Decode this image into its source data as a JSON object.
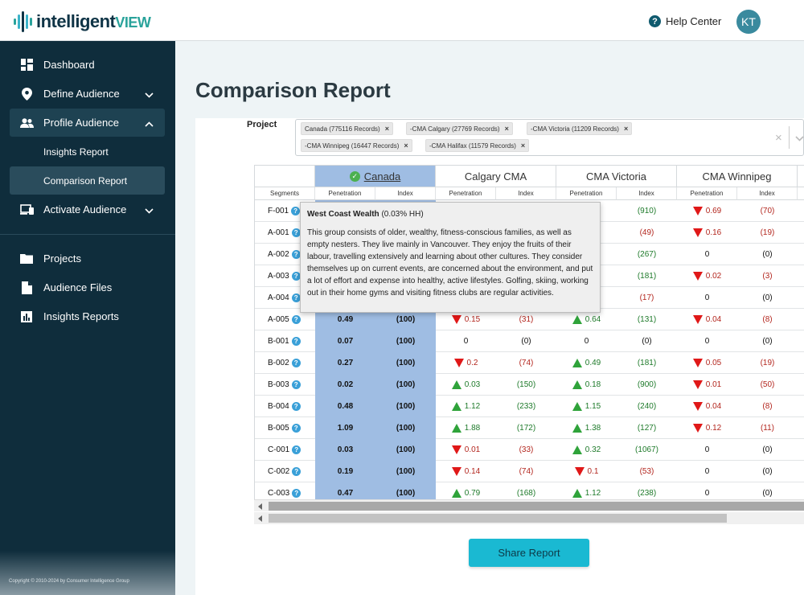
{
  "app": {
    "logo_main": "intelligent",
    "logo_accent": "VIEW"
  },
  "topbar": {
    "help_label": "Help Center",
    "avatar_initials": "KT"
  },
  "sidebar": {
    "items": [
      {
        "label": "Dashboard"
      },
      {
        "label": "Define Audience"
      },
      {
        "label": "Profile Audience"
      },
      {
        "label": "Insights Report"
      },
      {
        "label": "Comparison Report"
      },
      {
        "label": "Activate Audience"
      },
      {
        "label": "Projects"
      },
      {
        "label": "Audience Files"
      },
      {
        "label": "Insights Reports"
      }
    ],
    "copyright": "Copyright © 2010-2024 by Consumer Intelligence Group"
  },
  "page": {
    "title": "Comparison Report",
    "project_label": "Project"
  },
  "project_chips": [
    "Canada (775116 Records)",
    "-CMA Calgary (27769 Records)",
    "-CMA Victoria (11209 Records)",
    "-CMA Winnipeg (16447 Records)",
    "-CMA Halifax (11579 Records)"
  ],
  "table": {
    "columns": [
      "Canada",
      "Calgary CMA",
      "CMA Victoria",
      "CMA Winnipeg"
    ],
    "subheaders": {
      "segments": "Segments",
      "penetration": "Penetration",
      "index": "Index"
    },
    "rows": [
      {
        "seg": "F-001",
        "c": [
          "",
          ""
        ],
        "cal": [
          "",
          ""
        ],
        "vic": [
          "",
          "(910)"
        ],
        "win": [
          "0.69",
          "(70)"
        ],
        "dir": [
          "",
          "",
          "down"
        ]
      },
      {
        "seg": "A-001",
        "c": [
          "",
          ""
        ],
        "cal": [
          "",
          ""
        ],
        "vic": [
          "",
          "(49)"
        ],
        "win": [
          "0.16",
          "(19)"
        ],
        "dir": [
          "",
          "",
          "down"
        ]
      },
      {
        "seg": "A-002",
        "c": [
          "",
          ""
        ],
        "cal": [
          "",
          ""
        ],
        "vic": [
          "",
          "(267)"
        ],
        "win": [
          "0",
          "(0)"
        ],
        "dir": [
          "",
          "",
          ""
        ]
      },
      {
        "seg": "A-003",
        "c": [
          "",
          ""
        ],
        "cal": [
          "",
          ""
        ],
        "vic": [
          "",
          "(181)"
        ],
        "win": [
          "0.02",
          "(3)"
        ],
        "dir": [
          "",
          "",
          "down"
        ]
      },
      {
        "seg": "A-004",
        "c": [
          "",
          ""
        ],
        "cal": [
          "",
          ""
        ],
        "vic": [
          "",
          "(17)"
        ],
        "win": [
          "0",
          "(0)"
        ],
        "dir": [
          "",
          "",
          ""
        ]
      },
      {
        "seg": "A-005",
        "c": [
          "0.49",
          "(100)"
        ],
        "cal": [
          "0.15",
          "(31)"
        ],
        "vic": [
          "0.64",
          "(131)"
        ],
        "win": [
          "0.04",
          "(8)"
        ],
        "dir": [
          "down",
          "up",
          "down"
        ]
      },
      {
        "seg": "B-001",
        "c": [
          "0.07",
          "(100)"
        ],
        "cal": [
          "0",
          "(0)"
        ],
        "vic": [
          "0",
          "(0)"
        ],
        "win": [
          "0",
          "(0)"
        ],
        "dir": [
          "",
          "",
          ""
        ]
      },
      {
        "seg": "B-002",
        "c": [
          "0.27",
          "(100)"
        ],
        "cal": [
          "0.2",
          "(74)"
        ],
        "vic": [
          "0.49",
          "(181)"
        ],
        "win": [
          "0.05",
          "(19)"
        ],
        "dir": [
          "down",
          "up",
          "down"
        ]
      },
      {
        "seg": "B-003",
        "c": [
          "0.02",
          "(100)"
        ],
        "cal": [
          "0.03",
          "(150)"
        ],
        "vic": [
          "0.18",
          "(900)"
        ],
        "win": [
          "0.01",
          "(50)"
        ],
        "dir": [
          "up",
          "up",
          "down"
        ]
      },
      {
        "seg": "B-004",
        "c": [
          "0.48",
          "(100)"
        ],
        "cal": [
          "1.12",
          "(233)"
        ],
        "vic": [
          "1.15",
          "(240)"
        ],
        "win": [
          "0.04",
          "(8)"
        ],
        "dir": [
          "up",
          "up",
          "down"
        ]
      },
      {
        "seg": "B-005",
        "c": [
          "1.09",
          "(100)"
        ],
        "cal": [
          "1.88",
          "(172)"
        ],
        "vic": [
          "1.38",
          "(127)"
        ],
        "win": [
          "0.12",
          "(11)"
        ],
        "dir": [
          "up",
          "up",
          "down"
        ]
      },
      {
        "seg": "C-001",
        "c": [
          "0.03",
          "(100)"
        ],
        "cal": [
          "0.01",
          "(33)"
        ],
        "vic": [
          "0.32",
          "(1067)"
        ],
        "win": [
          "0",
          "(0)"
        ],
        "dir": [
          "down",
          "up",
          ""
        ]
      },
      {
        "seg": "C-002",
        "c": [
          "0.19",
          "(100)"
        ],
        "cal": [
          "0.14",
          "(74)"
        ],
        "vic": [
          "0.1",
          "(53)"
        ],
        "win": [
          "0",
          "(0)"
        ],
        "dir": [
          "down",
          "down",
          ""
        ]
      },
      {
        "seg": "C-003",
        "c": [
          "0.47",
          "(100)"
        ],
        "cal": [
          "0.79",
          "(168)"
        ],
        "vic": [
          "1.12",
          "(238)"
        ],
        "win": [
          "0",
          "(0)"
        ],
        "dir": [
          "up",
          "up",
          ""
        ]
      }
    ]
  },
  "tooltip": {
    "title": "West Coast Wealth",
    "subtitle": "(0.03% HH)",
    "body": "This group consists of older, wealthy, fitness-conscious families, as well as empty nesters. They live mainly in Vancouver. They enjoy the fruits of their labour, travelling extensively and learning about other cultures. They consider themselves up on current events, are concerned about the environment, and put a lot of effort and expense into healthy, active lifestyles. Golfing, skiing, working out in their home gyms and visiting fitness clubs are regular activities."
  },
  "share_button": "Share Report",
  "colors": {
    "sidebar_bg": "#0f2d3c",
    "canada_col": "#9fbde3",
    "up_green": "#2fa33a",
    "down_red": "#e01818",
    "share_btn": "#1ab9d2"
  }
}
